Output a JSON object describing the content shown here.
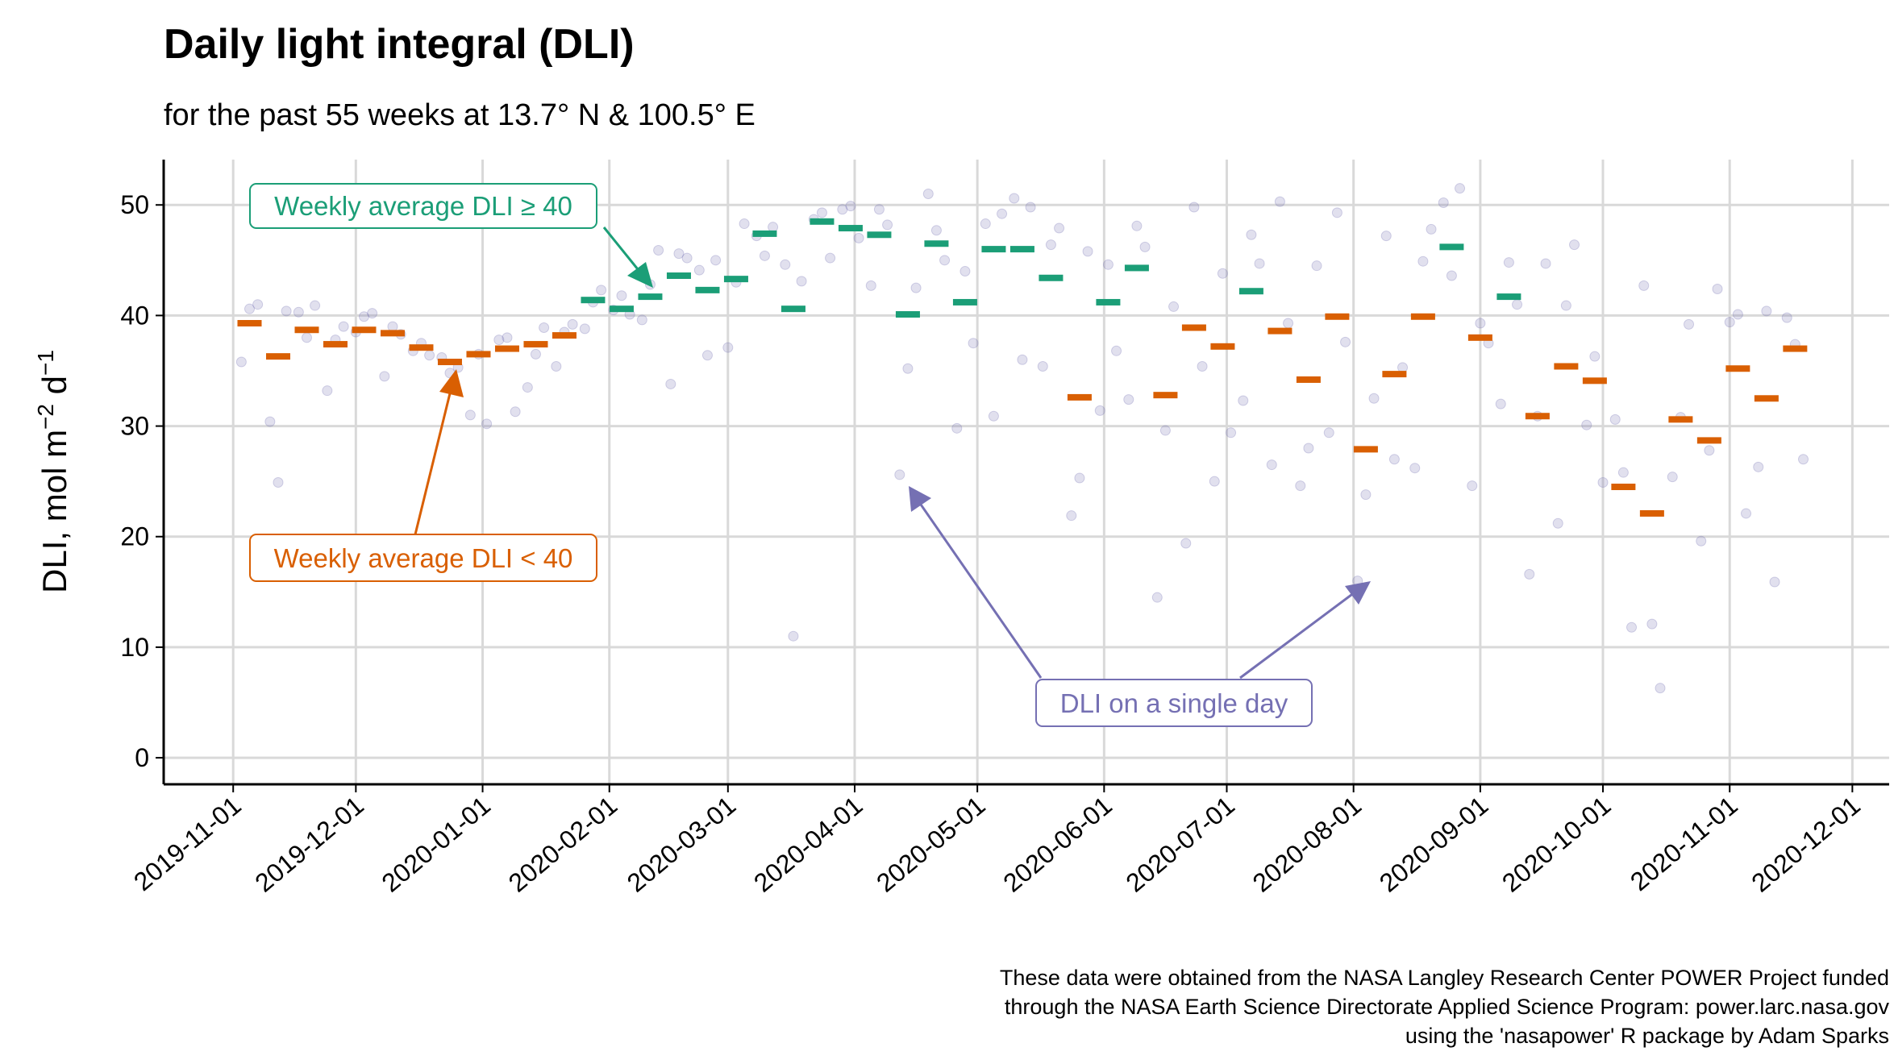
{
  "chart_data": {
    "type": "scatter",
    "title": "Daily light integral (DLI)",
    "subtitle": "for the past 55 weeks at 13.7° N & 100.5° E",
    "y_label": [
      "DLI, mol m",
      "−2",
      " d",
      "−1"
    ],
    "caption": [
      "These data were obtained from the NASA Langley Research Center POWER Project funded",
      "through the NASA Earth Science Directorate Applied Science Program: power.larc.nasa.gov",
      "using the 'nasapower' R package by Adam Sparks"
    ],
    "xlim": [
      "2019-10-15",
      "2020-12-10"
    ],
    "xticks": [
      "2019-11-01",
      "2019-12-01",
      "2020-01-01",
      "2020-02-01",
      "2020-03-01",
      "2020-04-01",
      "2020-05-01",
      "2020-06-01",
      "2020-07-01",
      "2020-08-01",
      "2020-09-01",
      "2020-10-01",
      "2020-11-01",
      "2020-12-01"
    ],
    "ylim": [
      -2.4,
      54.1
    ],
    "yticks": [
      0,
      10,
      20,
      30,
      40,
      50
    ],
    "grid": true,
    "series": [
      {
        "name": "DLI on a single day",
        "color": "#7570b3",
        "mark": "point",
        "x": [
          "2019-11-03",
          "2019-11-05",
          "2019-11-07",
          "2019-11-10",
          "2019-11-12",
          "2019-11-14",
          "2019-11-17",
          "2019-11-19",
          "2019-11-21",
          "2019-11-24",
          "2019-11-26",
          "2019-11-28",
          "2019-12-01",
          "2019-12-03",
          "2019-12-05",
          "2019-12-08",
          "2019-12-10",
          "2019-12-12",
          "2019-12-15",
          "2019-12-17",
          "2019-12-19",
          "2019-12-22",
          "2019-12-24",
          "2019-12-26",
          "2019-12-29",
          "2019-12-31",
          "2020-01-02",
          "2020-01-05",
          "2020-01-07",
          "2020-01-09",
          "2020-01-12",
          "2020-01-14",
          "2020-01-16",
          "2020-01-19",
          "2020-01-21",
          "2020-01-23",
          "2020-01-26",
          "2020-01-28",
          "2020-01-30",
          "2020-02-02",
          "2020-02-04",
          "2020-02-06",
          "2020-02-09",
          "2020-02-11",
          "2020-02-13",
          "2020-02-16",
          "2020-02-18",
          "2020-02-20",
          "2020-02-23",
          "2020-02-25",
          "2020-02-27",
          "2020-03-01",
          "2020-03-03",
          "2020-03-05",
          "2020-03-08",
          "2020-03-10",
          "2020-03-12",
          "2020-03-15",
          "2020-03-17",
          "2020-03-19",
          "2020-03-22",
          "2020-03-24",
          "2020-03-26",
          "2020-03-29",
          "2020-03-31",
          "2020-04-02",
          "2020-04-05",
          "2020-04-07",
          "2020-04-09",
          "2020-04-12",
          "2020-04-14",
          "2020-04-16",
          "2020-04-19",
          "2020-04-21",
          "2020-04-23",
          "2020-04-26",
          "2020-04-28",
          "2020-04-30",
          "2020-05-03",
          "2020-05-05",
          "2020-05-07",
          "2020-05-10",
          "2020-05-12",
          "2020-05-14",
          "2020-05-17",
          "2020-05-19",
          "2020-05-21",
          "2020-05-24",
          "2020-05-26",
          "2020-05-28",
          "2020-05-31",
          "2020-06-02",
          "2020-06-04",
          "2020-06-07",
          "2020-06-09",
          "2020-06-11",
          "2020-06-14",
          "2020-06-16",
          "2020-06-18",
          "2020-06-21",
          "2020-06-23",
          "2020-06-25",
          "2020-06-28",
          "2020-06-30",
          "2020-07-02",
          "2020-07-05",
          "2020-07-07",
          "2020-07-09",
          "2020-07-12",
          "2020-07-14",
          "2020-07-16",
          "2020-07-19",
          "2020-07-21",
          "2020-07-23",
          "2020-07-26",
          "2020-07-28",
          "2020-07-30",
          "2020-08-02",
          "2020-08-04",
          "2020-08-06",
          "2020-08-09",
          "2020-08-11",
          "2020-08-13",
          "2020-08-16",
          "2020-08-18",
          "2020-08-20",
          "2020-08-23",
          "2020-08-25",
          "2020-08-27",
          "2020-08-30",
          "2020-09-01",
          "2020-09-03",
          "2020-09-06",
          "2020-09-08",
          "2020-09-10",
          "2020-09-13",
          "2020-09-15",
          "2020-09-17",
          "2020-09-20",
          "2020-09-22",
          "2020-09-24",
          "2020-09-27",
          "2020-09-29",
          "2020-10-01",
          "2020-10-04",
          "2020-10-06",
          "2020-10-08",
          "2020-10-11",
          "2020-10-13",
          "2020-10-15",
          "2020-10-18",
          "2020-10-20",
          "2020-10-22",
          "2020-10-25",
          "2020-10-27",
          "2020-10-29",
          "2020-11-01",
          "2020-11-03",
          "2020-11-05",
          "2020-11-08",
          "2020-11-10",
          "2020-11-12",
          "2020-11-15",
          "2020-11-17",
          "2020-11-19"
        ],
        "values": [
          35.8,
          40.6,
          41.0,
          30.4,
          24.9,
          40.4,
          40.3,
          38.0,
          40.9,
          33.2,
          37.8,
          39.0,
          38.5,
          39.9,
          40.2,
          34.5,
          39.0,
          38.3,
          36.8,
          37.5,
          36.4,
          36.2,
          34.8,
          35.3,
          31.0,
          36.5,
          30.2,
          37.8,
          38.0,
          31.3,
          33.5,
          36.5,
          38.9,
          35.4,
          38.5,
          39.2,
          38.8,
          41.2,
          42.3,
          40.5,
          41.8,
          40.1,
          39.6,
          42.8,
          45.9,
          33.8,
          45.6,
          45.2,
          44.1,
          36.4,
          45.0,
          37.1,
          43.0,
          48.3,
          47.2,
          45.4,
          48.0,
          44.6,
          11.0,
          43.1,
          48.7,
          49.3,
          45.2,
          49.6,
          49.9,
          47.0,
          42.7,
          49.6,
          48.2,
          25.6,
          35.2,
          42.5,
          51.0,
          47.7,
          45.0,
          29.8,
          44.0,
          37.5,
          48.3,
          30.9,
          49.2,
          50.6,
          36.0,
          49.8,
          35.4,
          46.4,
          47.9,
          21.9,
          25.3,
          45.8,
          31.4,
          44.6,
          36.8,
          32.4,
          48.1,
          46.2,
          14.5,
          29.6,
          40.8,
          19.4,
          49.8,
          35.4,
          25.0,
          43.8,
          29.4,
          32.3,
          47.3,
          44.7,
          26.5,
          50.3,
          39.3,
          24.6,
          28.0,
          44.5,
          29.4,
          49.3,
          37.6,
          16.0,
          23.8,
          32.5,
          47.2,
          27.0,
          35.3,
          26.2,
          44.9,
          47.8,
          50.2,
          43.6,
          51.5,
          24.6,
          39.3,
          37.5,
          32.0,
          44.8,
          41.0,
          16.6,
          30.9,
          44.7,
          21.2,
          40.9,
          46.4,
          30.1,
          36.3,
          24.9,
          30.6,
          25.8,
          11.8,
          42.7,
          12.1,
          6.3,
          25.4,
          30.8,
          39.2,
          19.6,
          27.8,
          42.4,
          39.4,
          40.1,
          22.1,
          26.3,
          40.4,
          15.9,
          39.8,
          37.4,
          27.0
        ]
      },
      {
        "name": "Weekly average DLI ≥ 40",
        "color": "#1b9e77",
        "mark": "dash",
        "x": [
          "2020-01-28",
          "2020-02-04",
          "2020-02-11",
          "2020-02-18",
          "2020-02-25",
          "2020-03-03",
          "2020-03-10",
          "2020-03-17",
          "2020-03-24",
          "2020-03-31",
          "2020-04-07",
          "2020-04-14",
          "2020-04-21",
          "2020-04-28",
          "2020-05-05",
          "2020-05-12",
          "2020-05-19",
          "2020-06-02",
          "2020-06-09",
          "2020-07-07",
          "2020-08-25",
          "2020-09-08"
        ],
        "values": [
          41.4,
          40.6,
          41.7,
          43.6,
          42.3,
          43.3,
          47.4,
          40.6,
          48.5,
          47.9,
          47.3,
          40.1,
          46.5,
          41.2,
          46.0,
          46.0,
          43.4,
          41.2,
          44.3,
          42.2,
          46.2,
          41.7
        ]
      },
      {
        "name": "Weekly average DLI < 40",
        "color": "#d95f02",
        "mark": "dash",
        "x": [
          "2019-11-05",
          "2019-11-12",
          "2019-11-19",
          "2019-11-26",
          "2019-12-03",
          "2019-12-10",
          "2019-12-17",
          "2019-12-24",
          "2019-12-31",
          "2020-01-07",
          "2020-01-14",
          "2020-01-21",
          "2020-05-26",
          "2020-06-16",
          "2020-06-23",
          "2020-06-30",
          "2020-07-14",
          "2020-07-21",
          "2020-07-28",
          "2020-08-04",
          "2020-08-11",
          "2020-08-18",
          "2020-09-01",
          "2020-09-15",
          "2020-09-22",
          "2020-09-29",
          "2020-10-06",
          "2020-10-13",
          "2020-10-20",
          "2020-10-27",
          "2020-11-03",
          "2020-11-10",
          "2020-11-17"
        ],
        "values": [
          39.3,
          36.3,
          38.7,
          37.4,
          38.7,
          38.4,
          37.1,
          35.8,
          36.5,
          37.0,
          37.4,
          38.2,
          32.6,
          32.8,
          38.9,
          37.2,
          38.6,
          34.2,
          39.9,
          27.9,
          34.7,
          39.9,
          38.0,
          30.9,
          35.4,
          34.1,
          24.5,
          22.1,
          30.6,
          28.7,
          35.2,
          32.5,
          37.0
        ]
      }
    ]
  }
}
